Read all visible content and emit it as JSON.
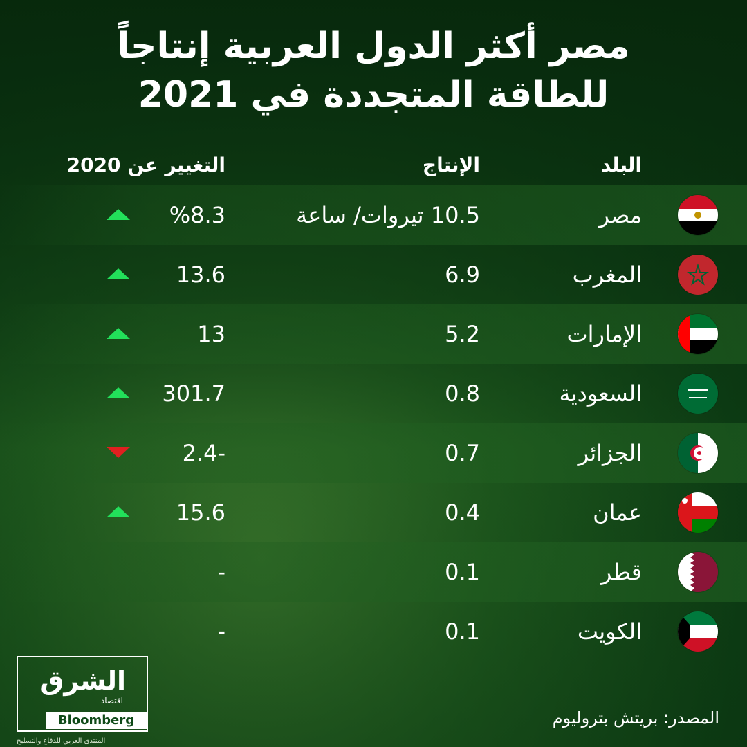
{
  "title": {
    "line1": "مصر أكثر الدول العربية إنتاجاً",
    "line2": "للطاقة المتجددة في 2021"
  },
  "headers": {
    "country": "البلد",
    "production": "الإنتاج",
    "change": "التغيير عن 2020"
  },
  "rows": [
    {
      "country": "مصر",
      "production": "10.5 تيروات/ ساعة",
      "change": "%8.3",
      "trend": "up",
      "flag": "egypt-flag-icon"
    },
    {
      "country": "المغرب",
      "production": "6.9",
      "change": "13.6",
      "trend": "up",
      "flag": "morocco-flag-icon"
    },
    {
      "country": "الإمارات",
      "production": "5.2",
      "change": "13",
      "trend": "up",
      "flag": "uae-flag-icon"
    },
    {
      "country": "السعودية",
      "production": "0.8",
      "change": "301.7",
      "trend": "up",
      "flag": "saudi-flag-icon"
    },
    {
      "country": "الجزائر",
      "production": "0.7",
      "change": "-2.4",
      "trend": "down",
      "flag": "algeria-flag-icon"
    },
    {
      "country": "عمان",
      "production": "0.4",
      "change": "15.6",
      "trend": "up",
      "flag": "oman-flag-icon"
    },
    {
      "country": "قطر",
      "production": "0.1",
      "change": "-",
      "trend": "none",
      "flag": "qatar-flag-icon"
    },
    {
      "country": "الكويت",
      "production": "0.1",
      "change": "-",
      "trend": "none",
      "flag": "kuwait-flag-icon"
    }
  ],
  "source": "المصدر: بريتش بتروليوم",
  "logo": {
    "main": "الشرق",
    "sub": "اقتصاد",
    "partner": "Bloomberg"
  },
  "watermark": "المنتدى العربي للدفاع والتسليح",
  "colors": {
    "up": "#22e05a",
    "down": "#e02020",
    "background": "#1f5a1e"
  }
}
